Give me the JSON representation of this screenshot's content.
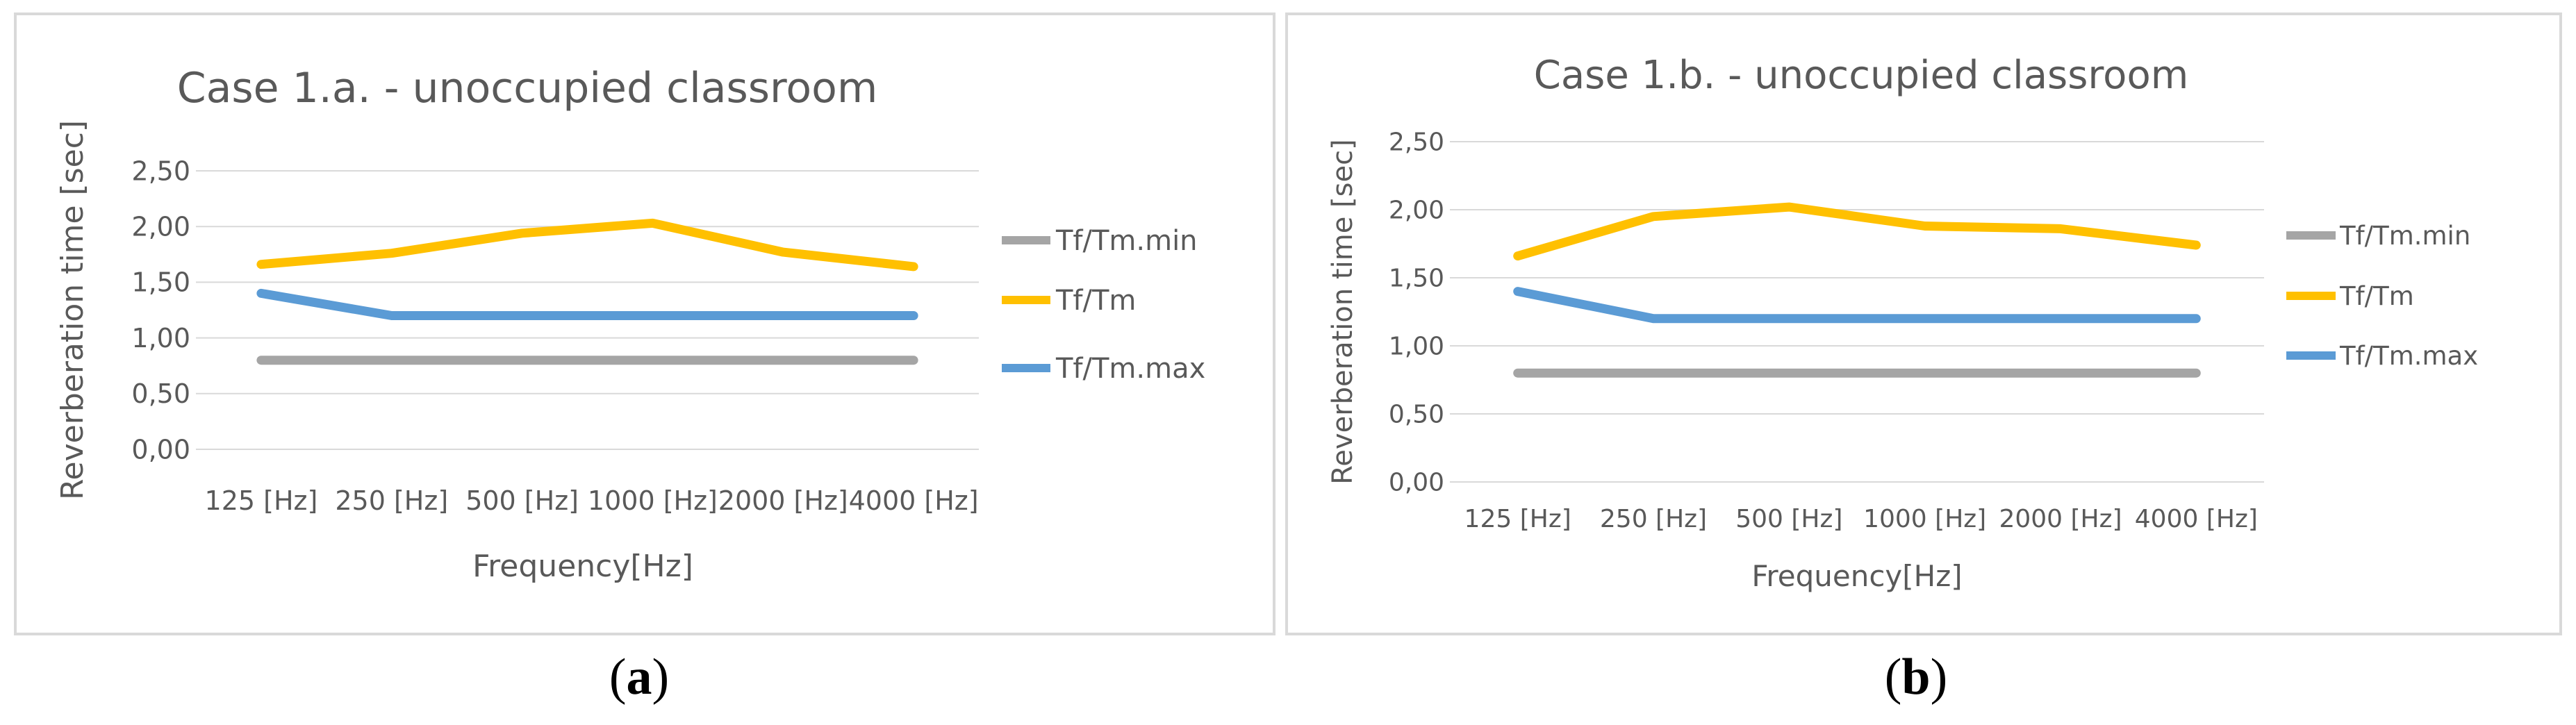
{
  "chart_data": [
    {
      "type": "line",
      "title": "Case 1.a. - unoccupied classroom",
      "xlabel": "Frequency[Hz]",
      "ylabel": "Reverberation time [sec]",
      "categories": [
        "125 [Hz]",
        "250 [Hz]",
        "500 [Hz]",
        "1000 [Hz]",
        "2000 [Hz]",
        "4000 [Hz]"
      ],
      "ylim": [
        0,
        2.5
      ],
      "yticks": [
        "0,00",
        "0,50",
        "1,00",
        "1,50",
        "2,00",
        "2,50"
      ],
      "grid": true,
      "legend_position": "right",
      "series": [
        {
          "name": "Tf/Tm.min",
          "color": "#a5a5a5",
          "values": [
            0.8,
            0.8,
            0.8,
            0.8,
            0.8,
            0.8
          ]
        },
        {
          "name": "Tf/Tm",
          "color": "#ffc000",
          "values": [
            1.66,
            1.76,
            1.94,
            2.03,
            1.77,
            1.64
          ]
        },
        {
          "name": "Tf/Tm.max",
          "color": "#5b9bd5",
          "values": [
            1.4,
            1.2,
            1.2,
            1.2,
            1.2,
            1.2
          ]
        }
      ]
    },
    {
      "type": "line",
      "title": "Case 1.b. - unoccupied classroom",
      "xlabel": "Frequency[Hz]",
      "ylabel": "Reverberation time [sec]",
      "categories": [
        "125 [Hz]",
        "250 [Hz]",
        "500 [Hz]",
        "1000 [Hz]",
        "2000 [Hz]",
        "4000 [Hz]"
      ],
      "ylim": [
        0,
        2.5
      ],
      "yticks": [
        "0,00",
        "0,50",
        "1,00",
        "1,50",
        "2,00",
        "2,50"
      ],
      "grid": true,
      "legend_position": "right",
      "series": [
        {
          "name": "Tf/Tm.min",
          "color": "#a5a5a5",
          "values": [
            0.8,
            0.8,
            0.8,
            0.8,
            0.8,
            0.8
          ]
        },
        {
          "name": "Tf/Tm",
          "color": "#ffc000",
          "values": [
            1.66,
            1.95,
            2.02,
            1.88,
            1.86,
            1.74
          ]
        },
        {
          "name": "Tf/Tm.max",
          "color": "#5b9bd5",
          "values": [
            1.4,
            1.2,
            1.2,
            1.2,
            1.2,
            1.2
          ]
        }
      ]
    }
  ],
  "captions": {
    "a": {
      "open": "(",
      "letter": "a",
      "close": ")"
    },
    "b": {
      "open": "(",
      "letter": "b",
      "close": ")"
    }
  }
}
